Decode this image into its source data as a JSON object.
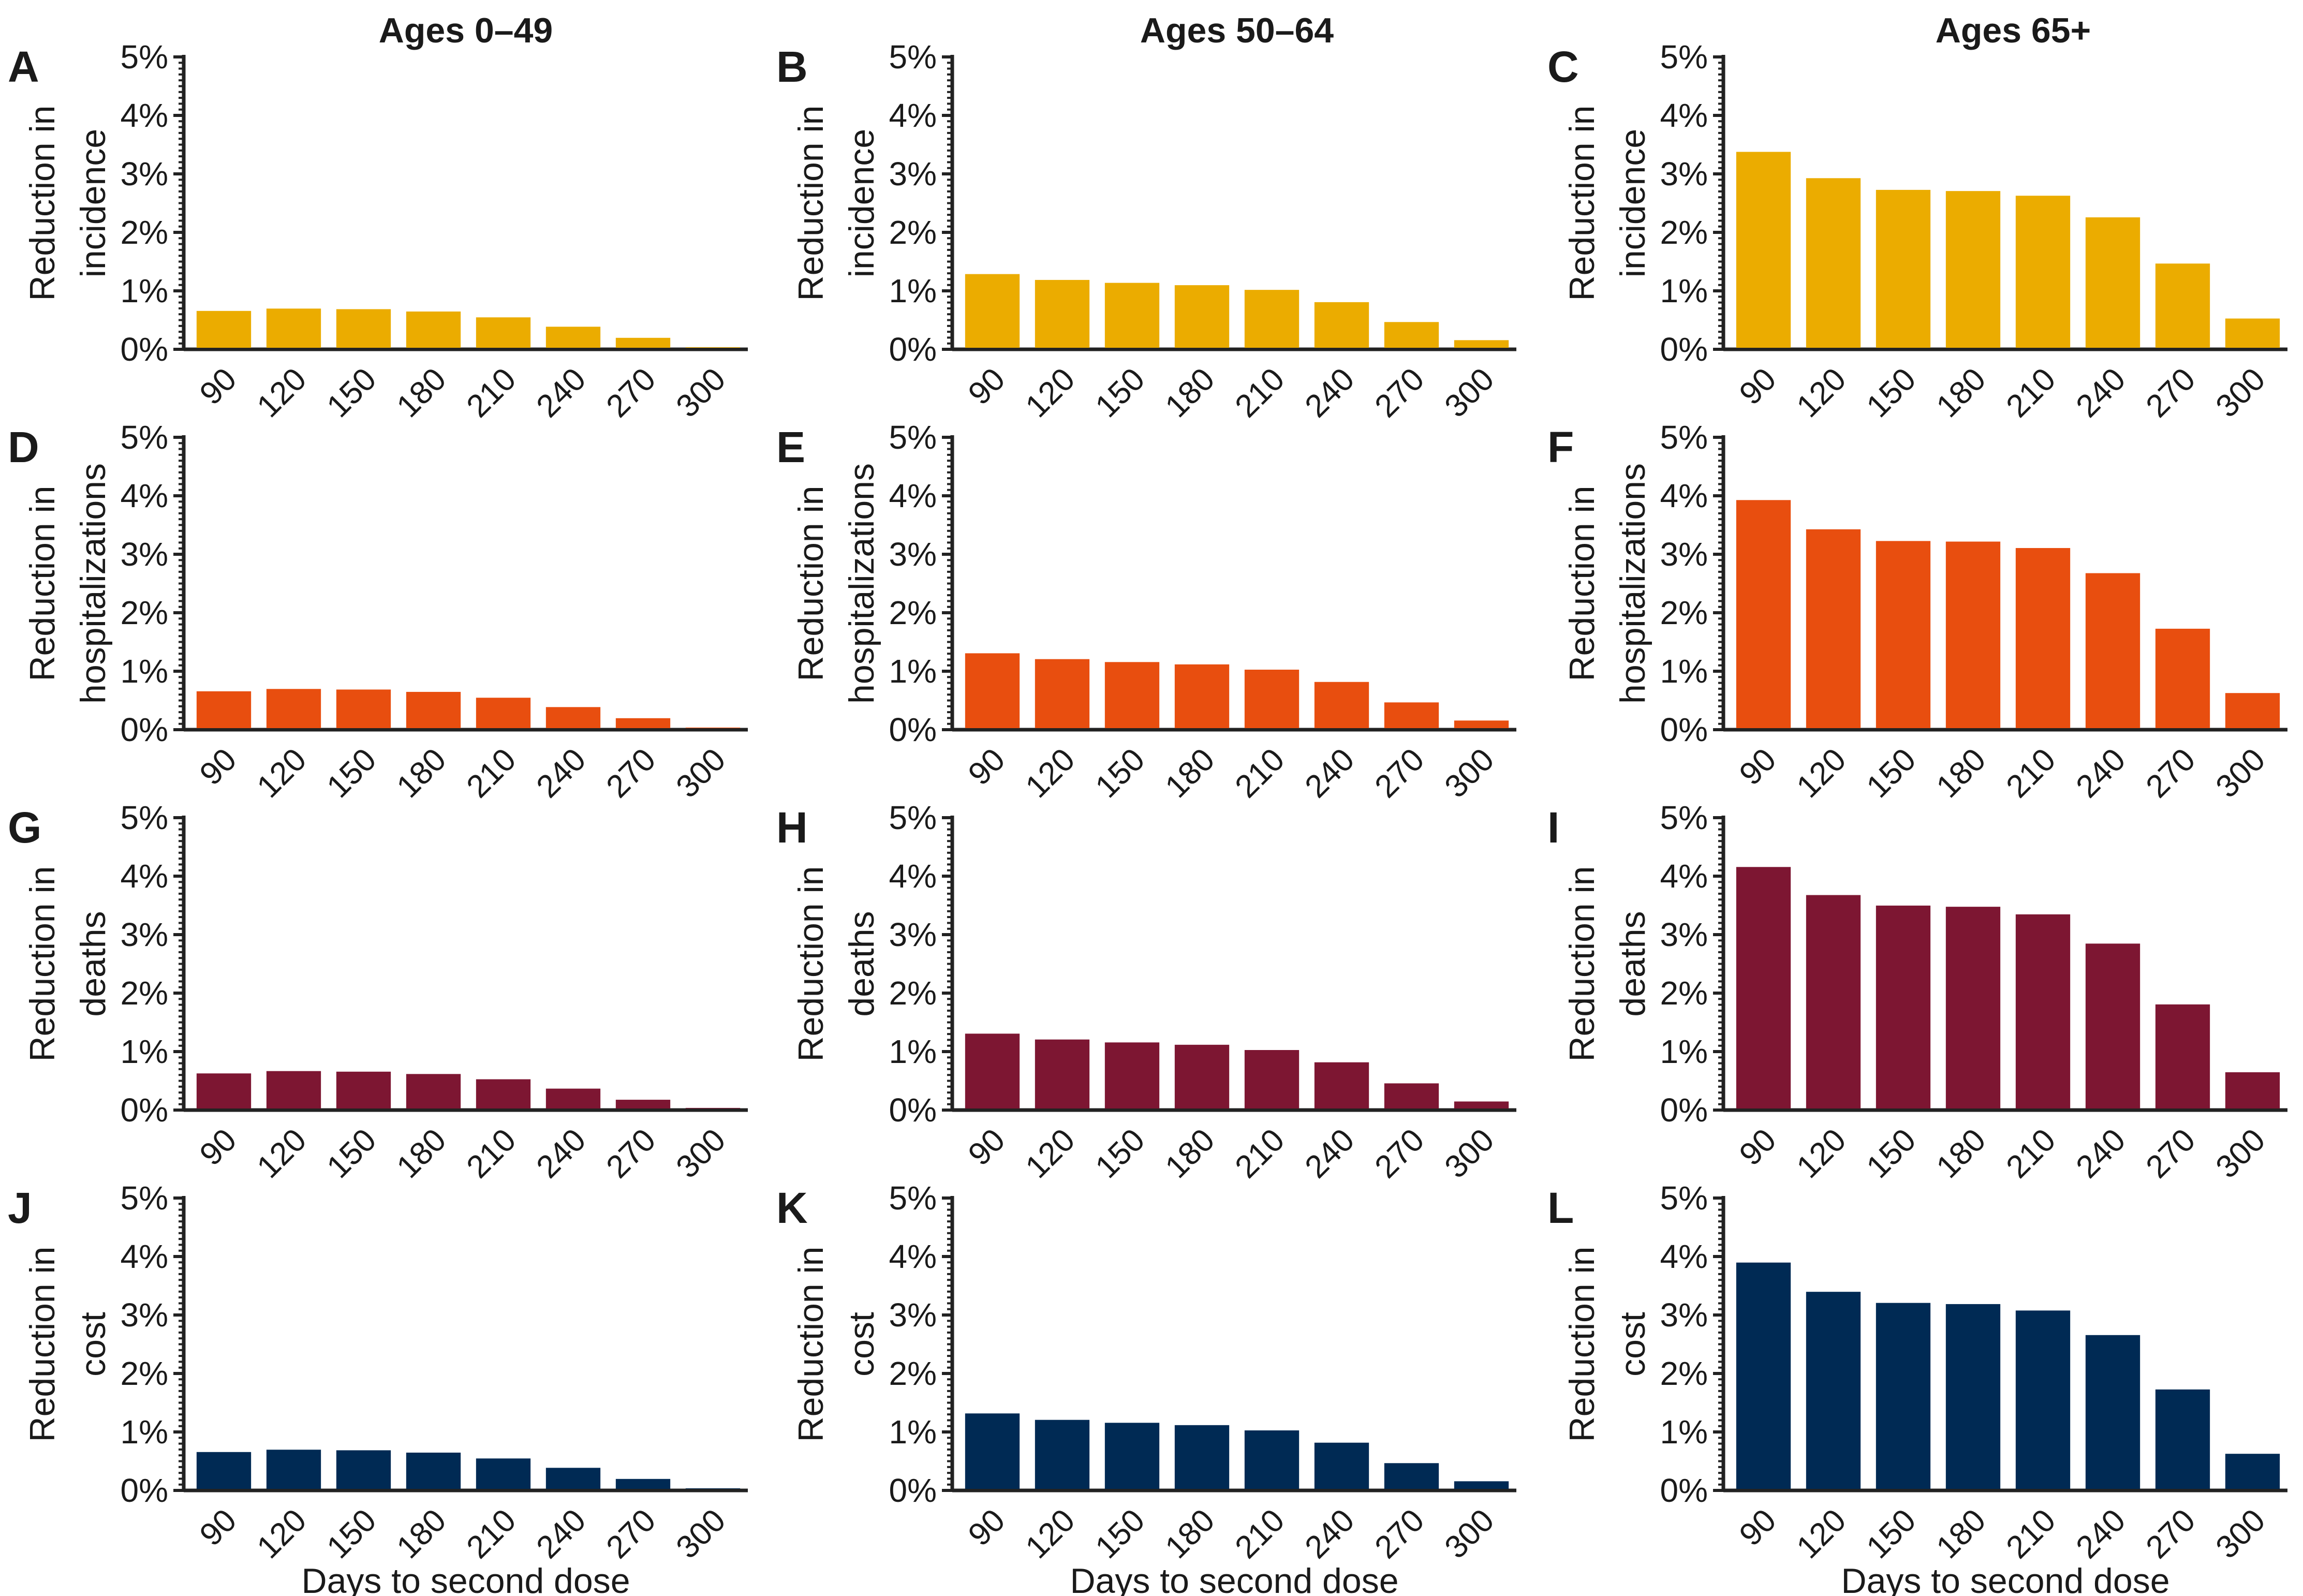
{
  "column_titles": [
    "Ages 0–49",
    "Ages 50–64",
    "Ages 65+"
  ],
  "x_axis_title": "Days to second dose",
  "colors": {
    "incidence": "#EBAC00",
    "hospitalizations": "#E84E0F",
    "deaths": "#7D1632",
    "cost": "#002A54",
    "axis": "#222222",
    "text": "#1a1a1a"
  },
  "chart_data": [
    {
      "panel": "A",
      "type": "bar",
      "column_title": "Ages 0–49",
      "ylabel": [
        "Reduction in",
        "incidence"
      ],
      "color_key": "incidence",
      "categories": [
        "90",
        "120",
        "150",
        "180",
        "210",
        "240",
        "270",
        "300"
      ],
      "values": [
        0.63,
        0.67,
        0.66,
        0.62,
        0.52,
        0.36,
        0.17,
        0.01
      ],
      "ylim": [
        0,
        5
      ],
      "yticks": [
        "0%",
        "1%",
        "2%",
        "3%",
        "4%",
        "5%"
      ],
      "xlabel": ""
    },
    {
      "panel": "B",
      "type": "bar",
      "column_title": "Ages 50–64",
      "ylabel": [
        "Reduction in",
        "incidence"
      ],
      "color_key": "incidence",
      "categories": [
        "90",
        "120",
        "150",
        "180",
        "210",
        "240",
        "270",
        "300"
      ],
      "values": [
        1.26,
        1.16,
        1.11,
        1.07,
        0.99,
        0.78,
        0.44,
        0.13
      ],
      "ylim": [
        0,
        5
      ],
      "yticks": [
        "0%",
        "1%",
        "2%",
        "3%",
        "4%",
        "5%"
      ],
      "xlabel": ""
    },
    {
      "panel": "C",
      "type": "bar",
      "column_title": "Ages 65+",
      "ylabel": [
        "Reduction in",
        "incidence"
      ],
      "color_key": "incidence",
      "categories": [
        "90",
        "120",
        "150",
        "180",
        "210",
        "240",
        "270",
        "300"
      ],
      "values": [
        3.35,
        2.9,
        2.7,
        2.68,
        2.6,
        2.23,
        1.44,
        0.5
      ],
      "ylim": [
        0,
        5
      ],
      "yticks": [
        "0%",
        "1%",
        "2%",
        "3%",
        "4%",
        "5%"
      ],
      "xlabel": ""
    },
    {
      "panel": "D",
      "type": "bar",
      "ylabel": [
        "Reduction in",
        "hospitalizations"
      ],
      "color_key": "hospitalizations",
      "categories": [
        "90",
        "120",
        "150",
        "180",
        "210",
        "240",
        "270",
        "300"
      ],
      "values": [
        0.63,
        0.67,
        0.66,
        0.62,
        0.52,
        0.36,
        0.17,
        0.01
      ],
      "ylim": [
        0,
        5
      ],
      "yticks": [
        "0%",
        "1%",
        "2%",
        "3%",
        "4%",
        "5%"
      ],
      "xlabel": ""
    },
    {
      "panel": "E",
      "type": "bar",
      "ylabel": [
        "Reduction in",
        "hospitalizations"
      ],
      "color_key": "hospitalizations",
      "categories": [
        "90",
        "120",
        "150",
        "180",
        "210",
        "240",
        "270",
        "300"
      ],
      "values": [
        1.28,
        1.18,
        1.13,
        1.09,
        1.0,
        0.79,
        0.44,
        0.13
      ],
      "ylim": [
        0,
        5
      ],
      "yticks": [
        "0%",
        "1%",
        "2%",
        "3%",
        "4%",
        "5%"
      ],
      "xlabel": ""
    },
    {
      "panel": "F",
      "type": "bar",
      "ylabel": [
        "Reduction in",
        "hospitalizations"
      ],
      "color_key": "hospitalizations",
      "categories": [
        "90",
        "120",
        "150",
        "180",
        "210",
        "240",
        "270",
        "300"
      ],
      "values": [
        3.9,
        3.4,
        3.2,
        3.19,
        3.08,
        2.65,
        1.7,
        0.6
      ],
      "ylim": [
        0,
        5
      ],
      "yticks": [
        "0%",
        "1%",
        "2%",
        "3%",
        "4%",
        "5%"
      ],
      "xlabel": ""
    },
    {
      "panel": "G",
      "type": "bar",
      "ylabel": [
        "Reduction in",
        "deaths"
      ],
      "color_key": "deaths",
      "categories": [
        "90",
        "120",
        "150",
        "180",
        "210",
        "240",
        "270",
        "300"
      ],
      "values": [
        0.6,
        0.64,
        0.63,
        0.59,
        0.5,
        0.34,
        0.15,
        0.01
      ],
      "ylim": [
        0,
        5
      ],
      "yticks": [
        "0%",
        "1%",
        "2%",
        "3%",
        "4%",
        "5%"
      ],
      "xlabel": ""
    },
    {
      "panel": "H",
      "type": "bar",
      "ylabel": [
        "Reduction in",
        "deaths"
      ],
      "color_key": "deaths",
      "categories": [
        "90",
        "120",
        "150",
        "180",
        "210",
        "240",
        "270",
        "300"
      ],
      "values": [
        1.28,
        1.18,
        1.13,
        1.09,
        1.0,
        0.79,
        0.43,
        0.12
      ],
      "ylim": [
        0,
        5
      ],
      "yticks": [
        "0%",
        "1%",
        "2%",
        "3%",
        "4%",
        "5%"
      ],
      "xlabel": ""
    },
    {
      "panel": "I",
      "type": "bar",
      "ylabel": [
        "Reduction in",
        "deaths"
      ],
      "color_key": "deaths",
      "categories": [
        "90",
        "120",
        "150",
        "180",
        "210",
        "240",
        "270",
        "300"
      ],
      "values": [
        4.13,
        3.65,
        3.47,
        3.45,
        3.32,
        2.82,
        1.78,
        0.62
      ],
      "ylim": [
        0,
        5
      ],
      "yticks": [
        "0%",
        "1%",
        "2%",
        "3%",
        "4%",
        "5%"
      ],
      "xlabel": ""
    },
    {
      "panel": "J",
      "type": "bar",
      "ylabel": [
        "Reduction in",
        "cost"
      ],
      "color_key": "cost",
      "categories": [
        "90",
        "120",
        "150",
        "180",
        "210",
        "240",
        "270",
        "300"
      ],
      "values": [
        0.63,
        0.67,
        0.66,
        0.62,
        0.52,
        0.36,
        0.17,
        0.01
      ],
      "ylim": [
        0,
        5
      ],
      "yticks": [
        "0%",
        "1%",
        "2%",
        "3%",
        "4%",
        "5%"
      ],
      "xlabel": "Days to second dose"
    },
    {
      "panel": "K",
      "type": "bar",
      "ylabel": [
        "Reduction in",
        "cost"
      ],
      "color_key": "cost",
      "categories": [
        "90",
        "120",
        "150",
        "180",
        "210",
        "240",
        "270",
        "300"
      ],
      "values": [
        1.29,
        1.18,
        1.13,
        1.09,
        1.0,
        0.79,
        0.44,
        0.13
      ],
      "ylim": [
        0,
        5
      ],
      "yticks": [
        "0%",
        "1%",
        "2%",
        "3%",
        "4%",
        "5%"
      ],
      "xlabel": "Days to second dose"
    },
    {
      "panel": "L",
      "type": "bar",
      "ylabel": [
        "Reduction in",
        "cost"
      ],
      "color_key": "cost",
      "categories": [
        "90",
        "120",
        "150",
        "180",
        "210",
        "240",
        "270",
        "300"
      ],
      "values": [
        3.87,
        3.37,
        3.18,
        3.16,
        3.05,
        2.63,
        1.7,
        0.6
      ],
      "ylim": [
        0,
        5
      ],
      "yticks": [
        "0%",
        "1%",
        "2%",
        "3%",
        "4%",
        "5%"
      ],
      "xlabel": "Days to second dose"
    }
  ]
}
